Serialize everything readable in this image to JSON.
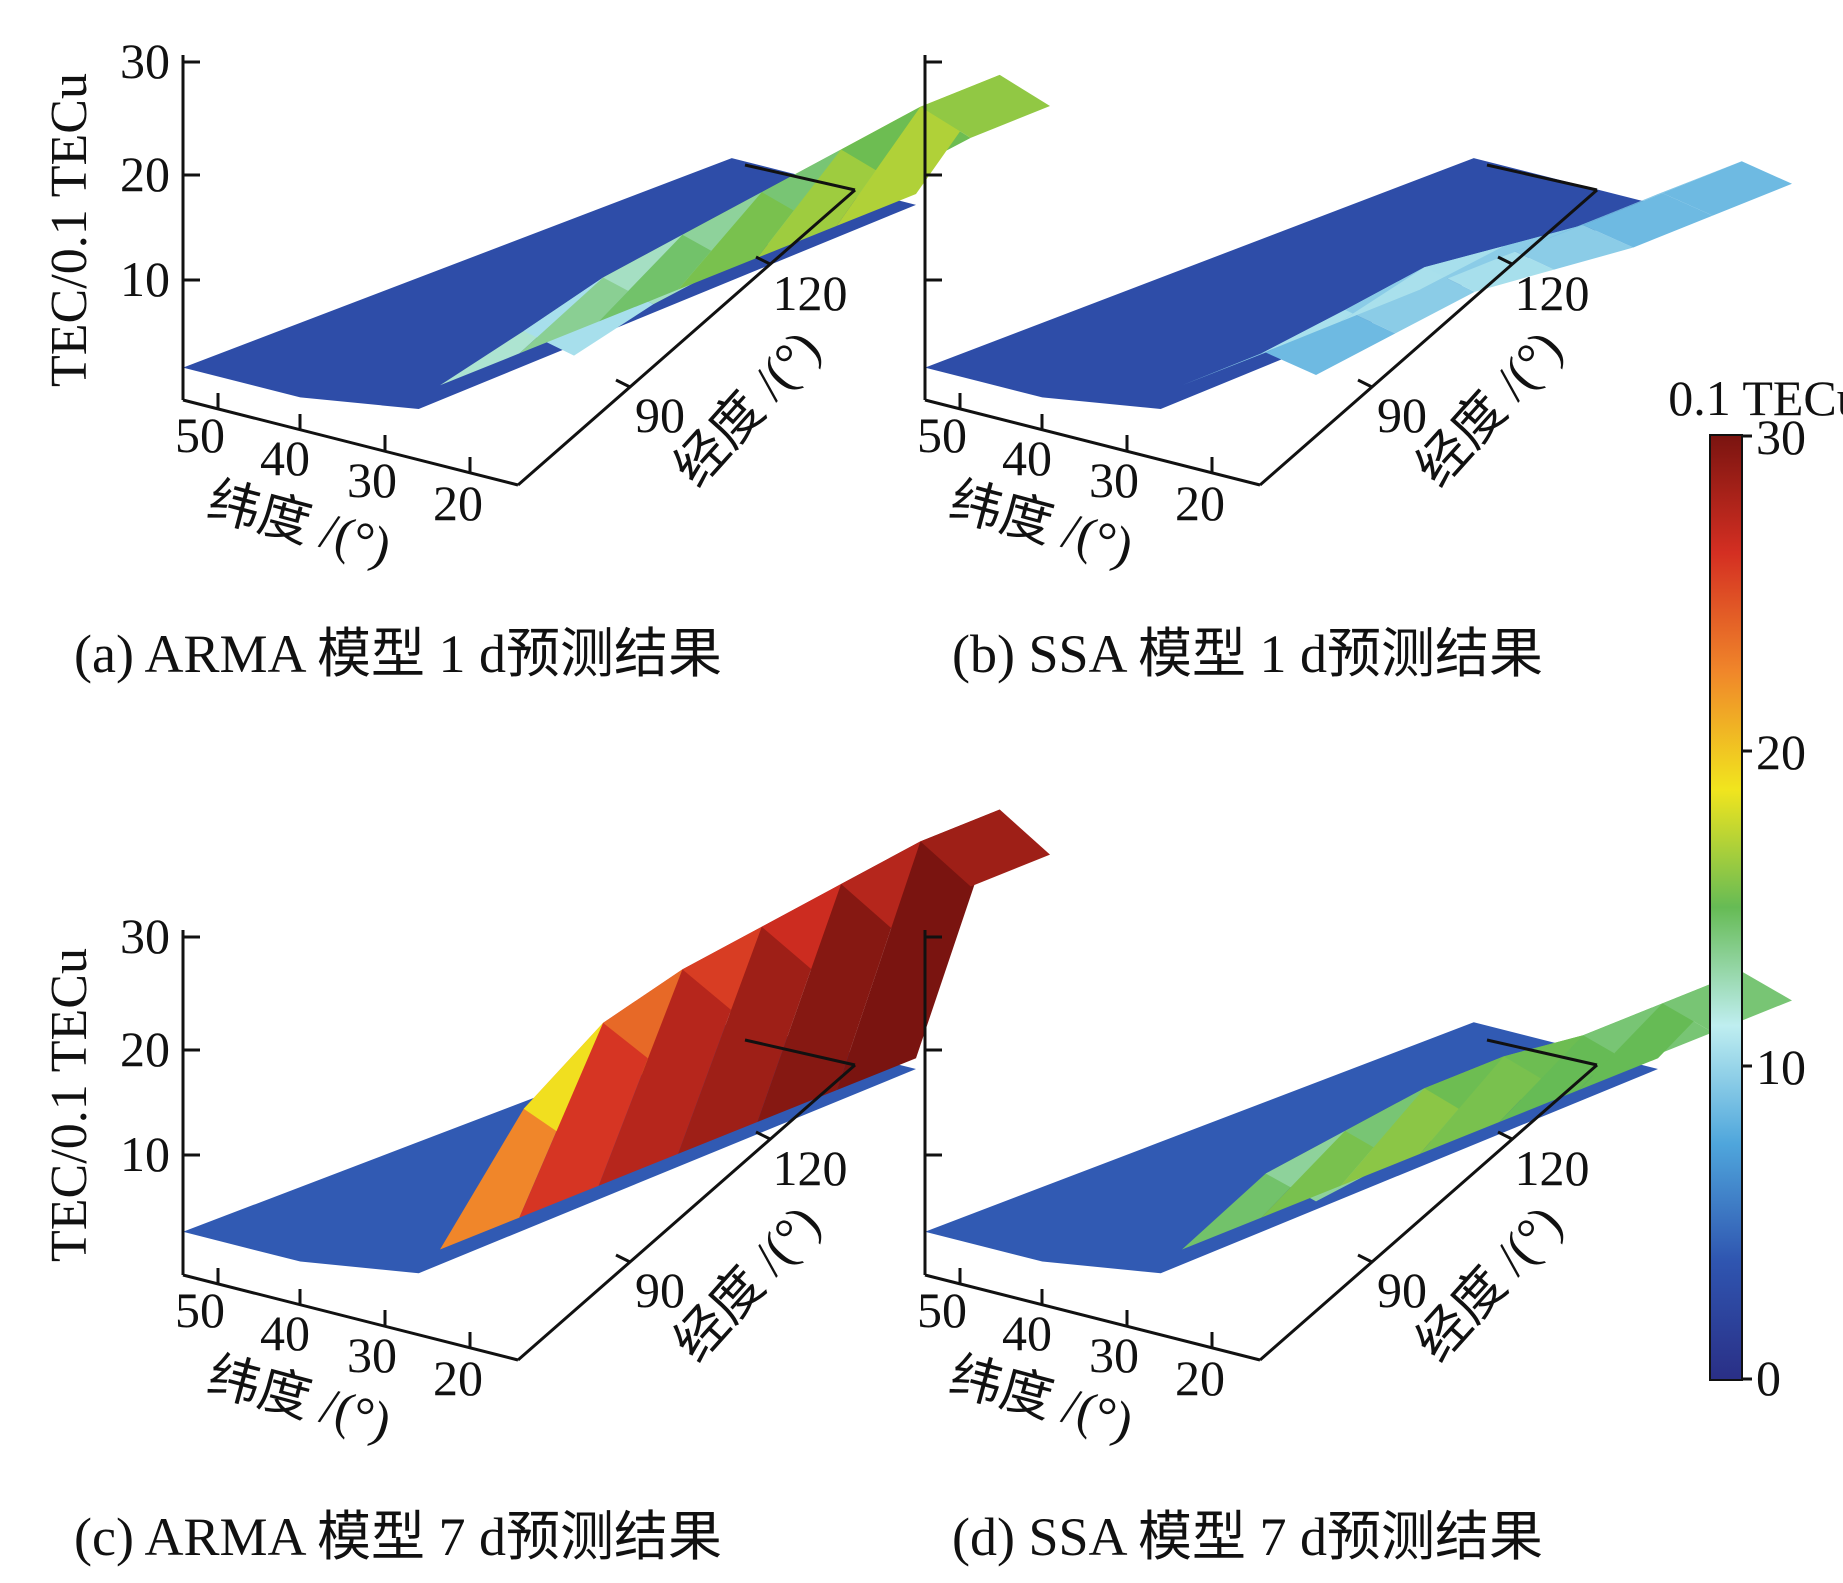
{
  "figure": {
    "colorbar": {
      "label": "0.1 TECu",
      "ticks": [
        "30",
        "20",
        "10",
        "0"
      ],
      "range": [
        0,
        30
      ],
      "colormap": [
        "#2a2f86",
        "#2f55b0",
        "#4fa6dc",
        "#bfeef0",
        "#66bb55",
        "#f1e51e",
        "#f0862a",
        "#d42f22",
        "#7a1410"
      ]
    }
  },
  "chart_data": [
    {
      "id": "a",
      "type": "surface",
      "caption": "(a) ARMA 模型 1 d预测结果",
      "zlabel": "TEC/0.1 TECu",
      "xlabel": "纬度 /(°)",
      "ylabel": "经度 /(°)",
      "z_ticks": [
        "30",
        "20",
        "10"
      ],
      "lat_ticks": [
        "50",
        "40",
        "30",
        "20"
      ],
      "lon_ticks": [
        "90",
        "120"
      ],
      "zlim": [
        0,
        30
      ],
      "surface": {
        "base_value": 3,
        "ridge_values": [
          11,
          13,
          14,
          15,
          16,
          17
        ],
        "ridge_peak": 17
      }
    },
    {
      "id": "b",
      "type": "surface",
      "caption": "(b) SSA 模型 1 d预测结果",
      "zlabel": "",
      "xlabel": "纬度 /(°)",
      "ylabel": "经度 /(°)",
      "z_ticks": [
        "",
        "",
        ""
      ],
      "lat_ticks": [
        "50",
        "40",
        "30",
        "20"
      ],
      "lon_ticks": [
        "90",
        "120"
      ],
      "zlim": [
        0,
        30
      ],
      "surface": {
        "base_value": 3,
        "ridge_values": [
          9,
          10,
          11,
          10,
          9,
          9
        ],
        "ridge_peak": 11
      }
    },
    {
      "id": "c",
      "type": "surface",
      "caption": "(c) ARMA 模型 7 d预测结果",
      "zlabel": "TEC/0.1 TECu",
      "xlabel": "纬度 /(°)",
      "ylabel": "经度 /(°)",
      "z_ticks": [
        "30",
        "20",
        "10"
      ],
      "lat_ticks": [
        "50",
        "40",
        "30",
        "20"
      ],
      "lon_ticks": [
        "90",
        "120"
      ],
      "zlim": [
        0,
        30
      ],
      "surface": {
        "base_value": 4,
        "ridge_values": [
          20,
          25,
          27,
          28,
          29,
          30
        ],
        "ridge_peak": 30
      }
    },
    {
      "id": "d",
      "type": "surface",
      "caption": "(d) SSA 模型 7 d预测结果",
      "zlabel": "",
      "xlabel": "纬度 /(°)",
      "ylabel": "经度 /(°)",
      "z_ticks": [
        "",
        "",
        ""
      ],
      "lat_ticks": [
        "50",
        "40",
        "30",
        "20"
      ],
      "lon_ticks": [
        "90",
        "120"
      ],
      "zlim": [
        0,
        30
      ],
      "surface": {
        "base_value": 4,
        "ridge_values": [
          14,
          15,
          16,
          16,
          15,
          15
        ],
        "ridge_peak": 16
      }
    }
  ]
}
